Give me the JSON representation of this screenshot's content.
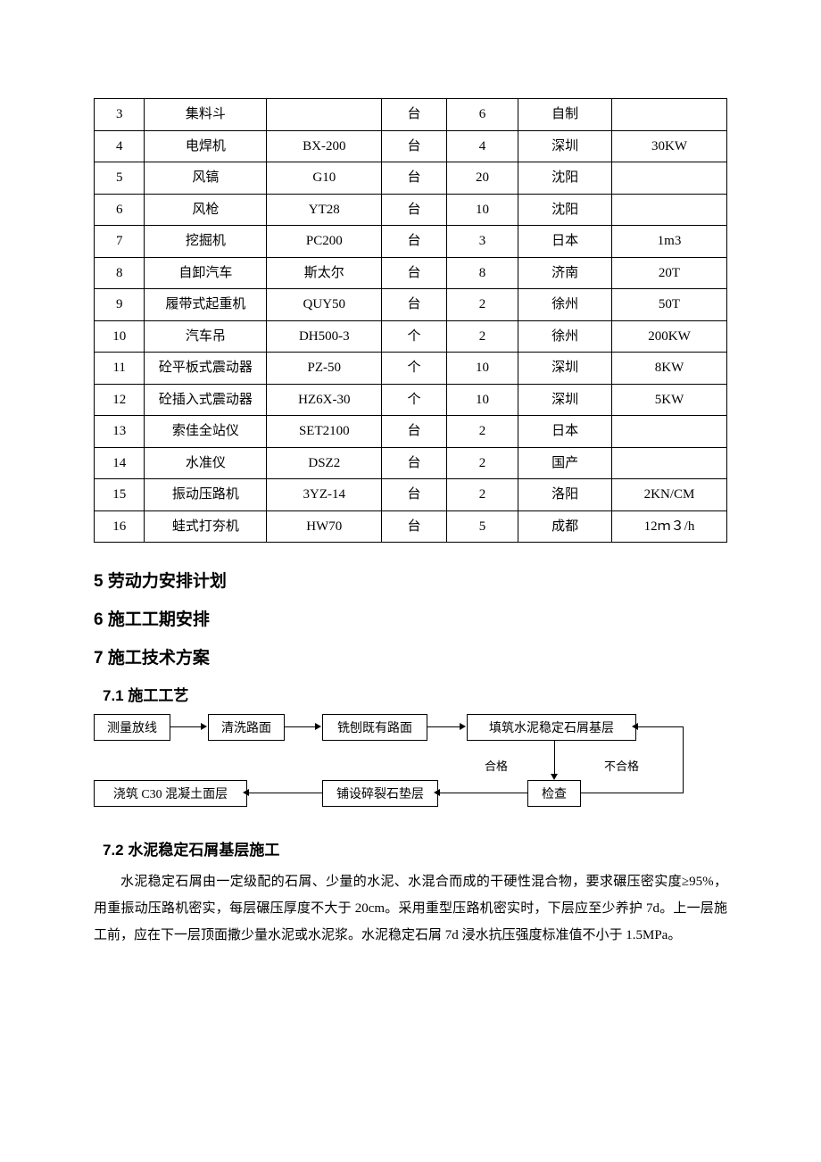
{
  "table": {
    "col_widths_class": [
      "col0",
      "col1",
      "col2",
      "col3",
      "col4",
      "col5",
      "col6"
    ],
    "rows": [
      [
        "3",
        "集料斗",
        "",
        "台",
        "6",
        "自制",
        ""
      ],
      [
        "4",
        "电焊机",
        "BX-200",
        "台",
        "4",
        "深圳",
        "30KW"
      ],
      [
        "5",
        "风镐",
        "G10",
        "台",
        "20",
        "沈阳",
        ""
      ],
      [
        "6",
        "风枪",
        "YT28",
        "台",
        "10",
        "沈阳",
        ""
      ],
      [
        "7",
        "挖掘机",
        "PC200",
        "台",
        "3",
        "日本",
        "1m3"
      ],
      [
        "8",
        "自卸汽车",
        "斯太尔",
        "台",
        "8",
        "济南",
        "20T"
      ],
      [
        "9",
        "履带式起重机",
        "QUY50",
        "台",
        "2",
        "徐州",
        "50T"
      ],
      [
        "10",
        "汽车吊",
        "DH500-3",
        "个",
        "2",
        "徐州",
        "200KW"
      ],
      [
        "11",
        "砼平板式震动器",
        "PZ-50",
        "个",
        "10",
        "深圳",
        "8KW"
      ],
      [
        "12",
        "砼插入式震动器",
        "HZ6X-30",
        "个",
        "10",
        "深圳",
        "5KW"
      ],
      [
        "13",
        "索佳全站仪",
        "SET2100",
        "台",
        "2",
        "日本",
        ""
      ],
      [
        "14",
        "水准仪",
        "DSZ2",
        "台",
        "2",
        "国产",
        ""
      ],
      [
        "15",
        "振动压路机",
        "3YZ-14",
        "台",
        "2",
        "洛阳",
        "2KN/CM"
      ],
      [
        "16",
        "蛙式打夯机",
        "HW70",
        "台",
        "5",
        "成都",
        "12ｍ３/h"
      ]
    ]
  },
  "headings": {
    "h5": "5 劳动力安排计划",
    "h6": "6 施工工期安排",
    "h7": "7 施工技术方案",
    "h7_1": "7.1 施工工艺",
    "h7_2": "7.2 水泥稳定石屑基层施工"
  },
  "flow": {
    "n1": "测量放线",
    "n2": "清洗路面",
    "n3": "铣刨既有路面",
    "n4": "填筑水泥稳定石屑基层",
    "n5": "检查",
    "n6": "铺设碎裂石垫层",
    "n7": "浇筑 C30 混凝土面层",
    "label_ok": "合格",
    "label_ng": "不合格"
  },
  "paragraph": "水泥稳定石屑由一定级配的石屑、少量的水泥、水混合而成的干硬性混合物，要求碾压密实度≥95%，用重振动压路机密实，每层碾压厚度不大于 20cm。采用重型压路机密实时，下层应至少养护 7d。上一层施工前，应在下一层顶面撒少量水泥或水泥浆。水泥稳定石屑 7d 浸水抗压强度标准值不小于 1.5MPa。",
  "style": {
    "body_width": 920,
    "body_bg": "#ffffff",
    "text_color": "#000000",
    "border_color": "#000000",
    "table_fontsize": 15,
    "heading_fontsize": 19,
    "subheading_fontsize": 17,
    "body_fontsize": 15,
    "flow_fontsize": 14
  }
}
